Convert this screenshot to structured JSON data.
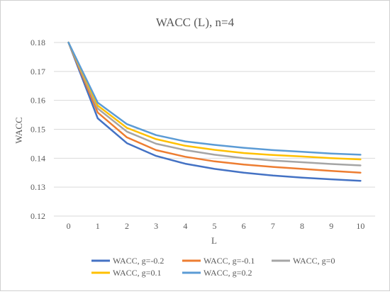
{
  "chart_data": {
    "type": "line",
    "title": "WACC (L), n=4",
    "xlabel": "L",
    "ylabel": "WACC",
    "x": [
      0,
      1,
      2,
      3,
      4,
      5,
      6,
      7,
      8,
      9,
      10
    ],
    "xlim": [
      0,
      10
    ],
    "ylim": [
      0.12,
      0.18
    ],
    "yticks": [
      "0.12",
      "0.13",
      "0.14",
      "0.15",
      "0.16",
      "0.17",
      "0.18"
    ],
    "grid": "horizontal",
    "legend_position": "bottom",
    "series": [
      {
        "name": "WACC, g=-0.2",
        "color": "#4472C4",
        "values": [
          0.18,
          0.1538,
          0.1452,
          0.1408,
          0.1381,
          0.1363,
          0.135,
          0.134,
          0.1333,
          0.1327,
          0.1322
        ]
      },
      {
        "name": "WACC, g=-0.1",
        "color": "#ED7D31",
        "values": [
          0.18,
          0.1558,
          0.1472,
          0.1428,
          0.1405,
          0.1389,
          0.1378,
          0.137,
          0.1363,
          0.1356,
          0.135
        ]
      },
      {
        "name": "WACC, g=0",
        "color": "#A5A5A5",
        "values": [
          0.18,
          0.1572,
          0.1492,
          0.145,
          0.1428,
          0.1412,
          0.14,
          0.1392,
          0.1386,
          0.138,
          0.1375
        ]
      },
      {
        "name": "WACC, g=0.1",
        "color": "#FFC000",
        "values": [
          0.18,
          0.1582,
          0.1505,
          0.1466,
          0.1443,
          0.1429,
          0.1418,
          0.1411,
          0.1406,
          0.14,
          0.1396
        ]
      },
      {
        "name": "WACC, g=0.2",
        "color": "#5B9BD5",
        "values": [
          0.18,
          0.1592,
          0.1518,
          0.148,
          0.1458,
          0.1446,
          0.1436,
          0.1428,
          0.1422,
          0.1416,
          0.1412
        ]
      }
    ]
  }
}
